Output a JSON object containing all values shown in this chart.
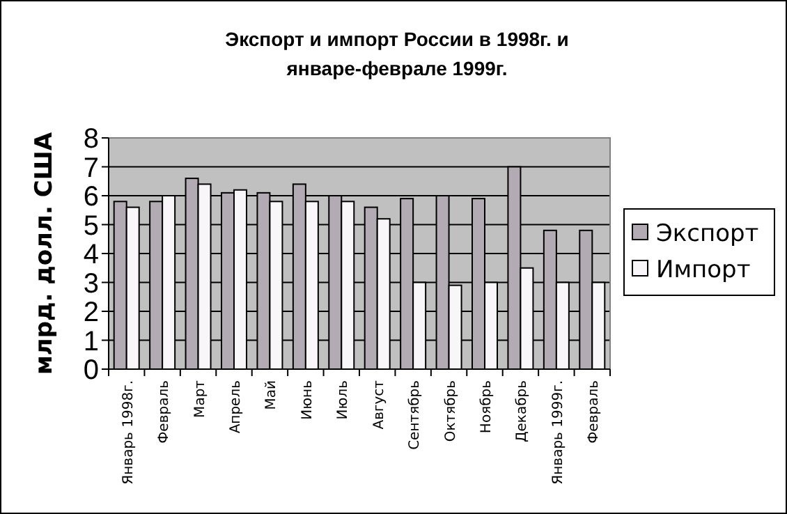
{
  "chart_data": {
    "type": "bar",
    "title": "Экспорт и импорт России в 1998г. и январе-феврале 1999г.",
    "ylabel": "млрд. долл. США",
    "categories": [
      "Январь 1998г.",
      "Февраль",
      "Март",
      "Апрель",
      "Май",
      "Июнь",
      "Июль",
      "Август",
      "Сентябрь",
      "Октябрь",
      "Ноябрь",
      "Декабрь",
      "Январь 1999г.",
      "Февраль"
    ],
    "series": [
      {
        "name": "Экспорт",
        "color": "#b3abb3",
        "values": [
          5.8,
          5.8,
          6.6,
          6.1,
          6.1,
          6.4,
          6.0,
          5.6,
          5.9,
          6.0,
          5.9,
          7.0,
          4.8,
          4.8
        ]
      },
      {
        "name": "Импорт",
        "color": "#f8f6f8",
        "values": [
          5.6,
          6.0,
          6.4,
          6.2,
          5.8,
          5.8,
          5.8,
          5.2,
          3.0,
          2.9,
          3.0,
          3.5,
          3.0,
          3.0
        ]
      }
    ],
    "ylim": [
      0,
      8
    ],
    "yticks": [
      0,
      1,
      2,
      3,
      4,
      5,
      6,
      7,
      8
    ],
    "grid": "y",
    "legend": "right"
  }
}
